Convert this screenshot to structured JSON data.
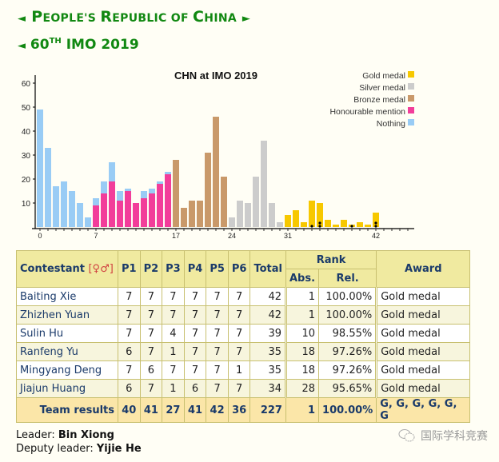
{
  "header": {
    "country_title": "People's Republic of China",
    "country_title_parts": [
      {
        "big": "P",
        "small": "EOPLE'S "
      },
      {
        "big": "R",
        "small": "EPUBLIC OF "
      },
      {
        "big": "C",
        "small": "HINA"
      }
    ],
    "left_arrow": "◄",
    "right_arrow": "►",
    "imo_number": "60",
    "imo_suffix": "TH",
    "imo_label": "IMO 2019"
  },
  "chart_data": {
    "type": "bar",
    "title": "CHN at IMO 2019",
    "xlabel": "",
    "ylabel": "",
    "x": [
      0,
      1,
      2,
      3,
      4,
      5,
      6,
      7,
      8,
      9,
      10,
      11,
      12,
      13,
      14,
      15,
      16,
      17,
      18,
      19,
      20,
      21,
      22,
      23,
      24,
      25,
      26,
      27,
      28,
      29,
      30,
      31,
      32,
      33,
      34,
      35,
      36,
      37,
      38,
      39,
      40,
      41,
      42
    ],
    "series": [
      {
        "name": "Nothing",
        "color": "#99ccf5",
        "values": [
          49,
          33,
          17,
          19,
          15,
          10,
          4,
          3,
          5,
          8,
          4,
          1,
          0,
          3,
          2,
          1,
          1,
          0,
          0,
          0,
          0,
          0,
          0,
          0,
          0,
          0,
          0,
          0,
          0,
          0,
          0,
          0,
          0,
          0,
          0,
          0,
          0,
          0,
          0,
          0,
          0,
          0,
          0
        ]
      },
      {
        "name": "Honourable mention",
        "color": "#f23d9a",
        "values": [
          0,
          0,
          0,
          0,
          0,
          0,
          0,
          9,
          14,
          19,
          11,
          15,
          10,
          12,
          14,
          18,
          22,
          0,
          0,
          0,
          0,
          0,
          0,
          0,
          0,
          0,
          0,
          0,
          0,
          0,
          0,
          0,
          0,
          0,
          0,
          0,
          0,
          0,
          0,
          0,
          0,
          0,
          0
        ]
      },
      {
        "name": "Bronze medal",
        "color": "#c9996a",
        "values": [
          0,
          0,
          0,
          0,
          0,
          0,
          0,
          0,
          0,
          0,
          0,
          0,
          0,
          0,
          0,
          0,
          0,
          28,
          8,
          11,
          11,
          31,
          46,
          21,
          0,
          0,
          0,
          0,
          0,
          0,
          0,
          0,
          0,
          0,
          0,
          0,
          0,
          0,
          0,
          0,
          0,
          0,
          0
        ]
      },
      {
        "name": "Silver medal",
        "color": "#cccccc",
        "values": [
          0,
          0,
          0,
          0,
          0,
          0,
          0,
          0,
          0,
          0,
          0,
          0,
          0,
          0,
          0,
          0,
          0,
          0,
          0,
          0,
          0,
          0,
          0,
          0,
          4,
          11,
          10,
          21,
          36,
          10,
          2,
          0,
          0,
          0,
          0,
          0,
          0,
          0,
          0,
          0,
          0,
          0,
          0
        ]
      },
      {
        "name": "Gold medal",
        "color": "#f7c800",
        "values": [
          0,
          0,
          0,
          0,
          0,
          0,
          0,
          0,
          0,
          0,
          0,
          0,
          0,
          0,
          0,
          0,
          0,
          0,
          0,
          0,
          0,
          0,
          0,
          0,
          0,
          0,
          0,
          0,
          0,
          0,
          0,
          5,
          7,
          2,
          11,
          10,
          3,
          1,
          3,
          1,
          2,
          1,
          6
        ]
      }
    ],
    "team_markers": {
      "34": 1,
      "35": 2,
      "39": 1,
      "42": 2
    },
    "x_ticks": [
      0,
      7,
      17,
      24,
      31,
      42
    ],
    "y_ticks": [
      10,
      20,
      30,
      40,
      50,
      60
    ],
    "ylim": [
      0,
      65
    ],
    "legend_order": [
      "Gold medal",
      "Silver medal",
      "Bronze medal",
      "Honourable mention",
      "Nothing"
    ],
    "legend_position": "top-right",
    "grid": false
  },
  "table": {
    "headers": {
      "contestant": "Contestant",
      "gender": "[♀♂]",
      "problems": [
        "P1",
        "P2",
        "P3",
        "P4",
        "P5",
        "P6"
      ],
      "total": "Total",
      "rank": "Rank",
      "abs": "Abs.",
      "rel": "Rel.",
      "award": "Award"
    },
    "rows": [
      {
        "name": "Baiting Xie",
        "scores": [
          "7",
          "7",
          "7",
          "7",
          "7",
          "7"
        ],
        "total": "42",
        "abs": "1",
        "rel": "100.00%",
        "award": "Gold medal"
      },
      {
        "name": "Zhizhen Yuan",
        "scores": [
          "7",
          "7",
          "7",
          "7",
          "7",
          "7"
        ],
        "total": "42",
        "abs": "1",
        "rel": "100.00%",
        "award": "Gold medal"
      },
      {
        "name": "Sulin Hu",
        "scores": [
          "7",
          "7",
          "4",
          "7",
          "7",
          "7"
        ],
        "total": "39",
        "abs": "10",
        "rel": "98.55%",
        "award": "Gold medal"
      },
      {
        "name": "Ranfeng Yu",
        "scores": [
          "6",
          "7",
          "1",
          "7",
          "7",
          "7"
        ],
        "total": "35",
        "abs": "18",
        "rel": "97.26%",
        "award": "Gold medal"
      },
      {
        "name": "Mingyang Deng",
        "scores": [
          "7",
          "6",
          "7",
          "7",
          "7",
          "1"
        ],
        "total": "35",
        "abs": "18",
        "rel": "97.26%",
        "award": "Gold medal"
      },
      {
        "name": "Jiajun Huang",
        "scores": [
          "6",
          "7",
          "1",
          "6",
          "7",
          "7"
        ],
        "total": "34",
        "abs": "28",
        "rel": "95.65%",
        "award": "Gold medal"
      }
    ],
    "team": {
      "label": "Team results",
      "scores": [
        "40",
        "41",
        "27",
        "41",
        "42",
        "36"
      ],
      "total": "227",
      "abs": "1",
      "rel": "100.00%",
      "award": "G, G, G, G, G, G"
    }
  },
  "footer": {
    "leader_label": "Leader: ",
    "leader_name": "Bin Xiong",
    "deputy_label": "Deputy leader: ",
    "deputy_name": "Yijie He"
  },
  "watermark": {
    "icon": "wechat-icon",
    "text": "国际学科竞赛"
  }
}
